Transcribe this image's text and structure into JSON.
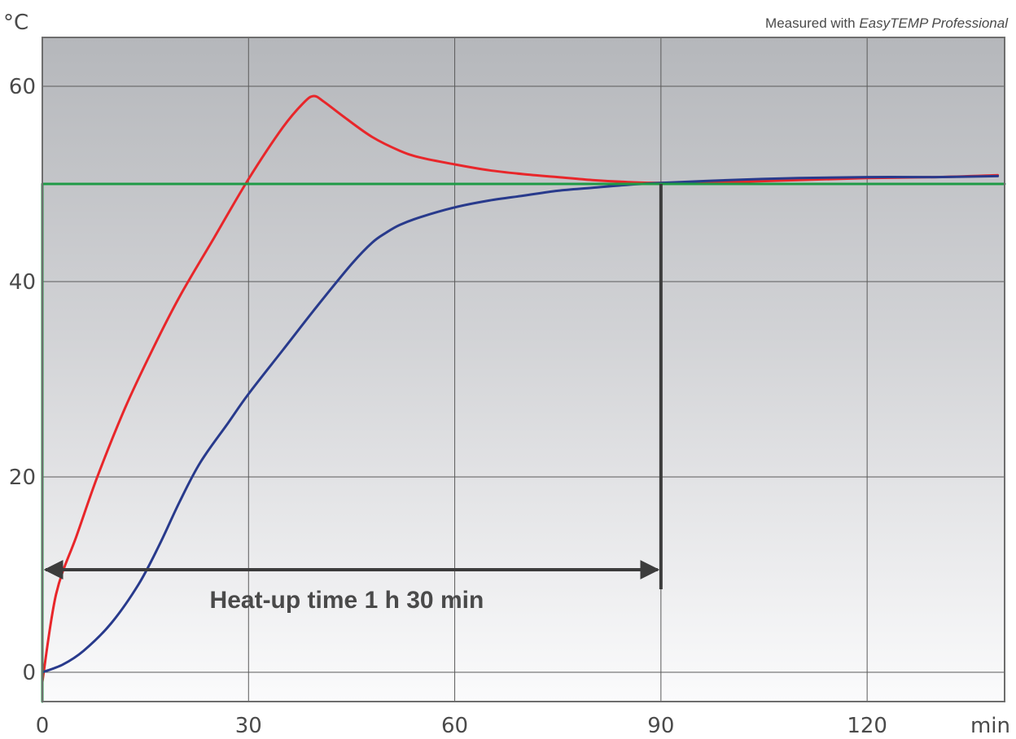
{
  "chart_data": {
    "type": "line",
    "y_unit": "°C",
    "x_unit": "min",
    "note_prefix": "Measured with ",
    "note_product": "EasyTEMP Professional",
    "xlim": [
      0,
      140
    ],
    "ylim": [
      -3,
      65
    ],
    "x_ticks": [
      {
        "value": 0,
        "label": "0"
      },
      {
        "value": 30,
        "label": "30"
      },
      {
        "value": 60,
        "label": "60"
      },
      {
        "value": 90,
        "label": "90"
      },
      {
        "value": 120,
        "label": "120"
      }
    ],
    "y_ticks": [
      {
        "value": 0,
        "label": "0"
      },
      {
        "value": 20,
        "label": "20"
      },
      {
        "value": 40,
        "label": "40"
      },
      {
        "value": 60,
        "label": "60"
      }
    ],
    "grid": true,
    "series": [
      {
        "color": "#e8262a",
        "x": [
          0,
          2,
          5,
          8,
          12,
          16,
          20,
          25,
          30,
          35,
          38,
          39.5,
          41,
          44,
          48,
          52,
          55,
          60,
          65,
          70,
          75,
          80,
          85,
          90,
          100,
          110,
          120,
          130,
          139
        ],
        "y": [
          -1,
          8,
          14,
          20,
          27,
          33,
          38.5,
          44.5,
          50.5,
          55.8,
          58.3,
          59,
          58.4,
          56.8,
          54.8,
          53.4,
          52.7,
          52,
          51.4,
          51,
          50.7,
          50.4,
          50.2,
          50.1,
          50.2,
          50.4,
          50.6,
          50.7,
          50.9
        ]
      },
      {
        "color": "#283a8c",
        "x": [
          0,
          3,
          6,
          10,
          14,
          17,
          20,
          23,
          27,
          30,
          35,
          40,
          45,
          48,
          50,
          52,
          55,
          60,
          65,
          70,
          75,
          80,
          85,
          90,
          100,
          110,
          120,
          130,
          139
        ],
        "y": [
          0,
          0.8,
          2.2,
          5,
          9,
          13,
          17.5,
          21.5,
          25.5,
          28.5,
          33,
          37.5,
          41.8,
          44,
          45,
          45.8,
          46.6,
          47.6,
          48.3,
          48.8,
          49.3,
          49.6,
          49.9,
          50.1,
          50.4,
          50.6,
          50.7,
          50.7,
          50.8
        ]
      },
      {
        "color": "#1f9a46",
        "x": [
          0,
          0,
          140
        ],
        "y": [
          -3,
          50,
          50
        ]
      }
    ],
    "annotation": {
      "label": "Heat-up time 1 h 30 min",
      "arrow_from": 0,
      "arrow_to": 90,
      "arrow_y": 10.5,
      "marker_x": 90,
      "marker_y_from": 8.5,
      "marker_y_to": 50
    }
  }
}
